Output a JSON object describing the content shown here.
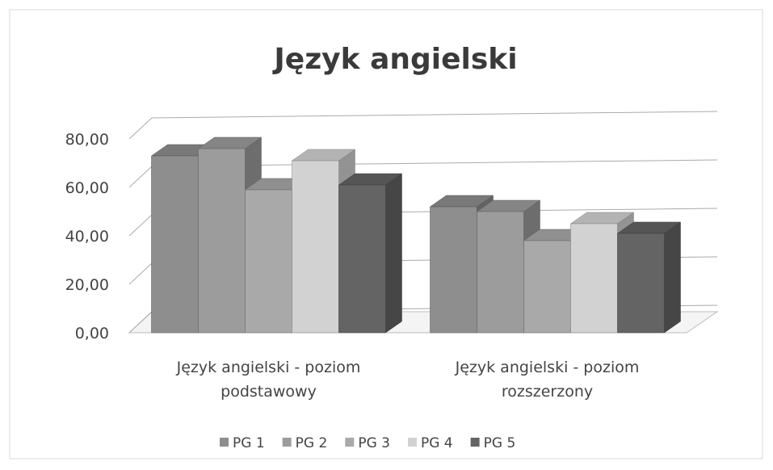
{
  "chart_data": {
    "type": "bar3d",
    "title": "Język angielski",
    "categories": [
      "Język angielski - poziom podstawowy",
      "Język angielski - poziom rozszerzony"
    ],
    "series": [
      {
        "name": "PG 1",
        "color": "#8e8e8e",
        "values": [
          73,
          52
        ]
      },
      {
        "name": "PG 2",
        "color": "#9c9c9c",
        "values": [
          76,
          50
        ]
      },
      {
        "name": "PG 3",
        "color": "#a9a9a9",
        "values": [
          59,
          38
        ]
      },
      {
        "name": "PG 4",
        "color": "#d2d2d2",
        "values": [
          71,
          45
        ]
      },
      {
        "name": "PG 5",
        "color": "#646464",
        "values": [
          61,
          41
        ]
      }
    ],
    "ylim": [
      0,
      80
    ],
    "yticks": [
      {
        "value": 0,
        "label": "0,00"
      },
      {
        "value": 20,
        "label": "20,00"
      },
      {
        "value": 40,
        "label": "40,00"
      },
      {
        "value": 60,
        "label": "60,00"
      },
      {
        "value": 80,
        "label": "80,00"
      }
    ],
    "grid": true,
    "legend": "bottom"
  }
}
